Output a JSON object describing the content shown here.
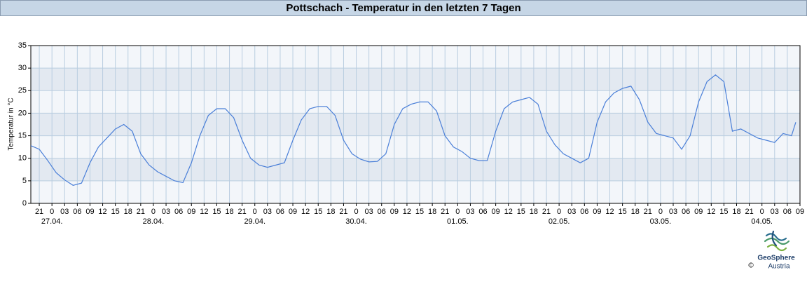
{
  "chart_data": {
    "type": "line",
    "title": "Pottschach - Temperatur in den letzten 7 Tagen",
    "ylabel": "Temperatur in °C",
    "color": "#4a7fd8",
    "grid": true,
    "ylim": [
      0,
      35
    ],
    "yticks": [
      0,
      5,
      10,
      15,
      20,
      25,
      30,
      35
    ],
    "xlim": [
      "26.04. 19:00",
      "04.05. 09:00"
    ],
    "x": [
      "26.04. 19:00",
      "26.04. 21:00",
      "26.04. 23:00",
      "27.04. 01:00",
      "27.04. 03:00",
      "27.04. 05:00",
      "27.04. 07:00",
      "27.04. 09:00",
      "27.04. 11:00",
      "27.04. 13:00",
      "27.04. 15:00",
      "27.04. 17:00",
      "27.04. 19:00",
      "27.04. 21:00",
      "27.04. 23:00",
      "28.04. 01:00",
      "28.04. 03:00",
      "28.04. 05:00",
      "28.04. 07:00",
      "28.04. 09:00",
      "28.04. 11:00",
      "28.04. 13:00",
      "28.04. 15:00",
      "28.04. 17:00",
      "28.04. 19:00",
      "28.04. 21:00",
      "28.04. 23:00",
      "29.04. 01:00",
      "29.04. 03:00",
      "29.04. 05:00",
      "29.04. 07:00",
      "29.04. 09:00",
      "29.04. 11:00",
      "29.04. 13:00",
      "29.04. 15:00",
      "29.04. 17:00",
      "29.04. 19:00",
      "29.04. 21:00",
      "29.04. 23:00",
      "30.04. 01:00",
      "30.04. 03:00",
      "30.04. 05:00",
      "30.04. 07:00",
      "30.04. 09:00",
      "30.04. 11:00",
      "30.04. 13:00",
      "30.04. 15:00",
      "30.04. 17:00",
      "30.04. 19:00",
      "30.04. 21:00",
      "30.04. 23:00",
      "01.05. 01:00",
      "01.05. 03:00",
      "01.05. 05:00",
      "01.05. 07:00",
      "01.05. 09:00",
      "01.05. 11:00",
      "01.05. 13:00",
      "01.05. 15:00",
      "01.05. 17:00",
      "01.05. 19:00",
      "01.05. 21:00",
      "01.05. 23:00",
      "02.05. 01:00",
      "02.05. 03:00",
      "02.05. 05:00",
      "02.05. 07:00",
      "02.05. 09:00",
      "02.05. 11:00",
      "02.05. 13:00",
      "02.05. 15:00",
      "02.05. 17:00",
      "02.05. 19:00",
      "02.05. 21:00",
      "02.05. 23:00",
      "03.05. 01:00",
      "03.05. 03:00",
      "03.05. 05:00",
      "03.05. 07:00",
      "03.05. 09:00",
      "03.05. 11:00",
      "03.05. 13:00",
      "03.05. 15:00",
      "03.05. 17:00",
      "03.05. 19:00",
      "03.05. 21:00",
      "03.05. 23:00",
      "04.05. 01:00",
      "04.05. 03:00",
      "04.05. 05:00",
      "04.05. 07:00",
      "04.05. 08:00"
    ],
    "values": [
      12.8,
      12.0,
      9.5,
      6.8,
      5.2,
      4.0,
      4.5,
      9.0,
      12.5,
      14.5,
      16.5,
      17.5,
      16.0,
      11.0,
      8.5,
      7.0,
      6.0,
      5.0,
      4.6,
      9.0,
      15.0,
      19.5,
      21.0,
      21.0,
      19.0,
      14.0,
      10.0,
      8.5,
      8.0,
      8.5,
      9.0,
      14.0,
      18.5,
      21.0,
      21.5,
      21.5,
      19.5,
      14.0,
      11.0,
      9.8,
      9.2,
      9.3,
      11.0,
      17.5,
      21.0,
      22.0,
      22.5,
      22.5,
      20.5,
      15.0,
      12.5,
      11.5,
      10.0,
      9.5,
      9.5,
      16.0,
      21.0,
      22.5,
      23.0,
      23.5,
      22.0,
      16.0,
      13.0,
      11.0,
      10.0,
      9.0,
      10.0,
      18.0,
      22.5,
      24.5,
      25.5,
      26.0,
      23.0,
      18.0,
      15.5,
      15.0,
      14.5,
      12.0,
      15.0,
      22.5,
      27.0,
      28.5,
      27.0,
      16.0,
      16.5,
      15.5,
      14.5,
      14.0,
      13.5,
      15.5,
      15.0,
      18.0
    ],
    "xticks": [
      {
        "value": "26.04. 21:00",
        "label": "21"
      },
      {
        "value": "27.04. 00:00",
        "label": "0"
      },
      {
        "value": "27.04. 03:00",
        "label": "03"
      },
      {
        "value": "27.04. 06:00",
        "label": "06"
      },
      {
        "value": "27.04. 09:00",
        "label": "09"
      },
      {
        "value": "27.04. 12:00",
        "label": "12"
      },
      {
        "value": "27.04. 15:00",
        "label": "15"
      },
      {
        "value": "27.04. 18:00",
        "label": "18"
      },
      {
        "value": "27.04. 21:00",
        "label": "21"
      },
      {
        "value": "28.04. 00:00",
        "label": "0"
      },
      {
        "value": "28.04. 03:00",
        "label": "03"
      },
      {
        "value": "28.04. 06:00",
        "label": "06"
      },
      {
        "value": "28.04. 09:00",
        "label": "09"
      },
      {
        "value": "28.04. 12:00",
        "label": "12"
      },
      {
        "value": "28.04. 15:00",
        "label": "15"
      },
      {
        "value": "28.04. 18:00",
        "label": "18"
      },
      {
        "value": "28.04. 21:00",
        "label": "21"
      },
      {
        "value": "29.04. 00:00",
        "label": "0"
      },
      {
        "value": "29.04. 03:00",
        "label": "03"
      },
      {
        "value": "29.04. 06:00",
        "label": "06"
      },
      {
        "value": "29.04. 09:00",
        "label": "09"
      },
      {
        "value": "29.04. 12:00",
        "label": "12"
      },
      {
        "value": "29.04. 15:00",
        "label": "15"
      },
      {
        "value": "29.04. 18:00",
        "label": "18"
      },
      {
        "value": "29.04. 21:00",
        "label": "21"
      },
      {
        "value": "30.04. 00:00",
        "label": "0"
      },
      {
        "value": "30.04. 03:00",
        "label": "03"
      },
      {
        "value": "30.04. 06:00",
        "label": "06"
      },
      {
        "value": "30.04. 09:00",
        "label": "09"
      },
      {
        "value": "30.04. 12:00",
        "label": "12"
      },
      {
        "value": "30.04. 15:00",
        "label": "15"
      },
      {
        "value": "30.04. 18:00",
        "label": "18"
      },
      {
        "value": "30.04. 21:00",
        "label": "21"
      },
      {
        "value": "01.05. 00:00",
        "label": "0"
      },
      {
        "value": "01.05. 03:00",
        "label": "03"
      },
      {
        "value": "01.05. 06:00",
        "label": "06"
      },
      {
        "value": "01.05. 09:00",
        "label": "09"
      },
      {
        "value": "01.05. 12:00",
        "label": "12"
      },
      {
        "value": "01.05. 15:00",
        "label": "15"
      },
      {
        "value": "01.05. 18:00",
        "label": "18"
      },
      {
        "value": "01.05. 21:00",
        "label": "21"
      },
      {
        "value": "02.05. 00:00",
        "label": "0"
      },
      {
        "value": "02.05. 03:00",
        "label": "03"
      },
      {
        "value": "02.05. 06:00",
        "label": "06"
      },
      {
        "value": "02.05. 09:00",
        "label": "09"
      },
      {
        "value": "02.05. 12:00",
        "label": "12"
      },
      {
        "value": "02.05. 15:00",
        "label": "15"
      },
      {
        "value": "02.05. 18:00",
        "label": "18"
      },
      {
        "value": "02.05. 21:00",
        "label": "21"
      },
      {
        "value": "03.05. 00:00",
        "label": "0"
      },
      {
        "value": "03.05. 03:00",
        "label": "03"
      },
      {
        "value": "03.05. 06:00",
        "label": "06"
      },
      {
        "value": "03.05. 09:00",
        "label": "09"
      },
      {
        "value": "03.05. 12:00",
        "label": "12"
      },
      {
        "value": "03.05. 15:00",
        "label": "15"
      },
      {
        "value": "03.05. 18:00",
        "label": "18"
      },
      {
        "value": "03.05. 21:00",
        "label": "21"
      },
      {
        "value": "04.05. 00:00",
        "label": "0"
      },
      {
        "value": "04.05. 03:00",
        "label": "03"
      },
      {
        "value": "04.05. 06:00",
        "label": "06"
      },
      {
        "value": "04.05. 09:00",
        "label": "09"
      }
    ],
    "x_date_labels": [
      {
        "value": "27.04. 00:00",
        "label": "27.04."
      },
      {
        "value": "28.04. 00:00",
        "label": "28.04."
      },
      {
        "value": "29.04. 00:00",
        "label": "29.04."
      },
      {
        "value": "30.04. 00:00",
        "label": "30.04."
      },
      {
        "value": "01.05. 00:00",
        "label": "01.05."
      },
      {
        "value": "02.05. 00:00",
        "label": "02.05."
      },
      {
        "value": "03.05. 00:00",
        "label": "03.05."
      },
      {
        "value": "04.05. 00:00",
        "label": "04.05."
      }
    ],
    "logo": {
      "name": "GeoSphere",
      "sub": "Austria",
      "copyright": "©"
    }
  }
}
